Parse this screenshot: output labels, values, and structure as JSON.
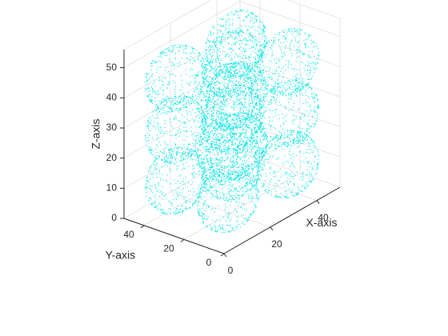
{
  "chart_data": {
    "type": "scatter",
    "subtype": "scatter3d",
    "title": "",
    "xlabel": "X-axis",
    "ylabel": "Y-axis",
    "zlabel": "Z-axis",
    "xlim": [
      0,
      50
    ],
    "ylim": [
      0,
      50
    ],
    "zlim": [
      0,
      56
    ],
    "xticks": [
      "0",
      "20",
      "40"
    ],
    "yticks": [
      "0",
      "20",
      "40"
    ],
    "zticks": [
      "0",
      "10",
      "20",
      "30",
      "40",
      "50"
    ],
    "xtick_values": [
      0,
      20,
      40
    ],
    "ytick_values": [
      0,
      20,
      40
    ],
    "ztick_values": [
      0,
      10,
      20,
      30,
      40,
      50
    ],
    "grid": true,
    "marker": "point",
    "color": "#00e5e5",
    "series": [
      {
        "shape": "sphere-surface-points",
        "radius": 10,
        "centers": [
          [
            12,
            12,
            10
          ],
          [
            38,
            12,
            10
          ],
          [
            12,
            38,
            10
          ],
          [
            38,
            38,
            10
          ],
          [
            25,
            25,
            12
          ],
          [
            12,
            12,
            27
          ],
          [
            38,
            12,
            27
          ],
          [
            12,
            38,
            27
          ],
          [
            38,
            38,
            27
          ],
          [
            25,
            25,
            28
          ],
          [
            12,
            12,
            44
          ],
          [
            38,
            12,
            44
          ],
          [
            12,
            38,
            44
          ],
          [
            38,
            38,
            44
          ],
          [
            25,
            25,
            46
          ]
        ]
      }
    ]
  }
}
